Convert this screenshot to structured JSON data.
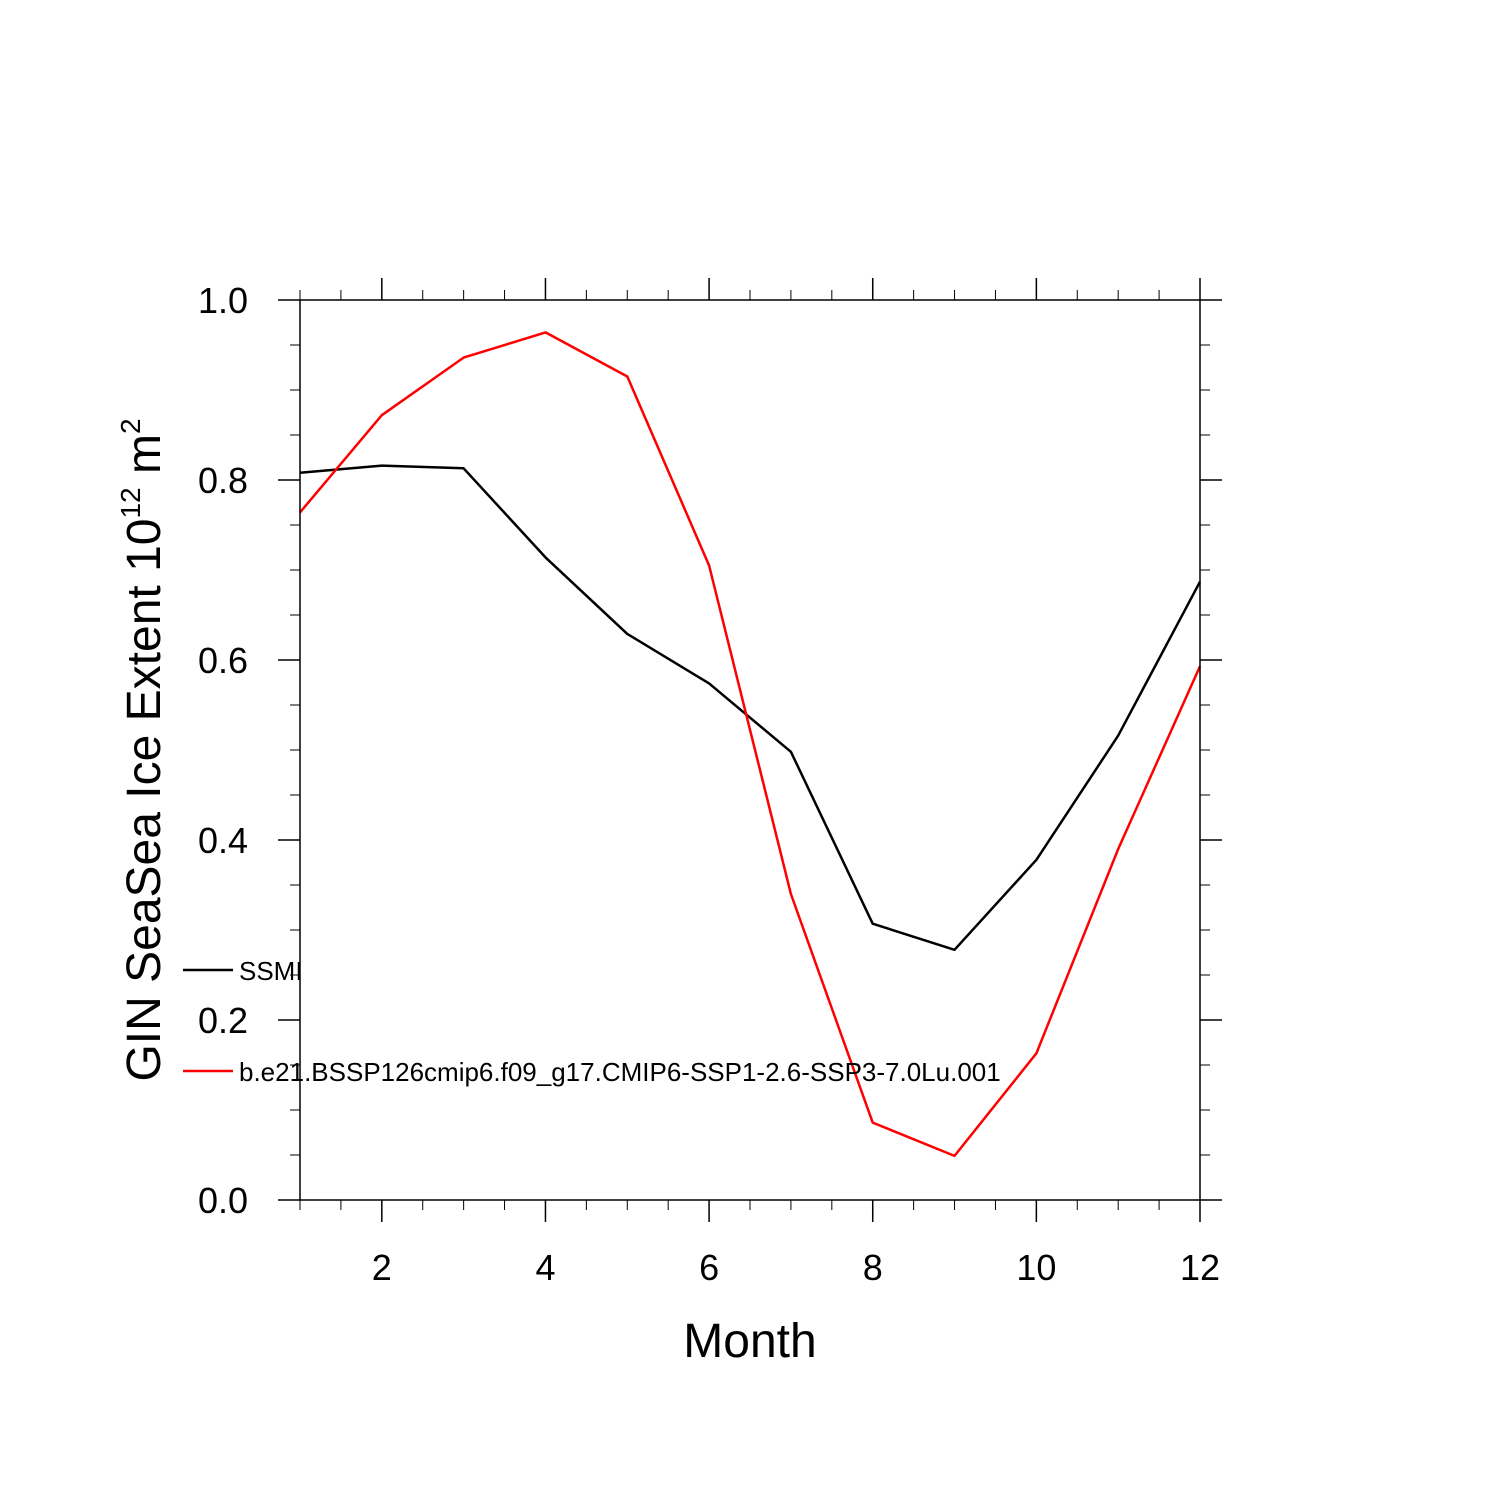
{
  "chart_data": {
    "type": "line",
    "title": "",
    "xlabel": "Month",
    "ylabel": {
      "main": "GIN SeaSea Ice Extent 10",
      "exp": "12",
      "unit": " m",
      "unit_exp": "2"
    },
    "xlim": [
      1,
      12
    ],
    "ylim": [
      0.0,
      1.0
    ],
    "x_ticks": [
      2,
      4,
      6,
      8,
      10,
      12
    ],
    "x_tick_labels": [
      "2",
      "4",
      "6",
      "8",
      "10",
      "12"
    ],
    "y_ticks": [
      0.0,
      0.2,
      0.4,
      0.6,
      0.8,
      1.0
    ],
    "y_tick_labels": [
      "0.0",
      "0.2",
      "0.4",
      "0.6",
      "0.8",
      "1.0"
    ],
    "x_minor_step": 0.5,
    "y_minor_step": 0.05,
    "grid": false,
    "legend_position": "inside-left",
    "x": [
      1,
      2,
      3,
      4,
      5,
      6,
      7,
      8,
      9,
      10,
      11,
      12
    ],
    "series": [
      {
        "name": "SSMI",
        "color": "#000000",
        "values": [
          0.808,
          0.816,
          0.813,
          0.714,
          0.629,
          0.574,
          0.498,
          0.307,
          0.278,
          0.378,
          0.516,
          0.687
        ]
      },
      {
        "name": "b.e21.BSSP126cmip6.f09_g17.CMIP6-SSP1-2.6-SSP3-7.0Lu.001",
        "color": "#ff0000",
        "values": [
          0.764,
          0.872,
          0.936,
          0.964,
          0.915,
          0.705,
          0.34,
          0.086,
          0.049,
          0.163,
          0.39,
          0.593
        ]
      }
    ]
  }
}
